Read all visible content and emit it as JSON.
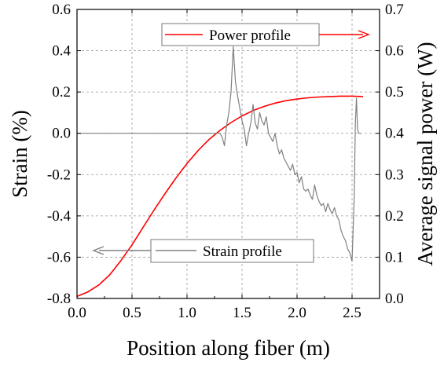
{
  "chart_data": {
    "type": "line",
    "xlabel": "Position along fiber (m)",
    "ylabel_left": "Strain (%)",
    "ylabel_right": "Average signal power (W)",
    "xlim": [
      0.0,
      2.75
    ],
    "ylim_left": [
      -0.8,
      0.6
    ],
    "ylim_right": [
      0.0,
      0.7
    ],
    "x_ticks": [
      "0.0",
      "0.5",
      "1.0",
      "1.5",
      "2.0",
      "2.5"
    ],
    "y_left_ticks": [
      "-0.8",
      "-0.6",
      "-0.4",
      "-0.2",
      "0.0",
      "0.2",
      "0.4",
      "0.6"
    ],
    "y_right_ticks": [
      "0.0",
      "0.1",
      "0.2",
      "0.3",
      "0.4",
      "0.5",
      "0.6",
      "0.7"
    ],
    "grid": true,
    "series": [
      {
        "name": "Power profile",
        "axis": "right",
        "color": "#ff0000",
        "x": [
          0.0,
          0.1,
          0.2,
          0.3,
          0.4,
          0.5,
          0.6,
          0.7,
          0.8,
          0.9,
          1.0,
          1.1,
          1.2,
          1.3,
          1.4,
          1.5,
          1.6,
          1.7,
          1.8,
          1.9,
          2.0,
          2.1,
          2.2,
          2.3,
          2.4,
          2.5,
          2.6
        ],
        "values": [
          0.005,
          0.016,
          0.033,
          0.058,
          0.092,
          0.13,
          0.172,
          0.214,
          0.254,
          0.292,
          0.327,
          0.358,
          0.385,
          0.407,
          0.426,
          0.442,
          0.455,
          0.465,
          0.473,
          0.479,
          0.483,
          0.486,
          0.488,
          0.489,
          0.49,
          0.49,
          0.489
        ]
      },
      {
        "name": "Strain profile",
        "axis": "left",
        "color": "#808080",
        "x": [
          0.0,
          1.3,
          1.32,
          1.34,
          1.36,
          1.38,
          1.4,
          1.42,
          1.44,
          1.46,
          1.48,
          1.5,
          1.52,
          1.54,
          1.56,
          1.58,
          1.6,
          1.62,
          1.64,
          1.66,
          1.68,
          1.7,
          1.72,
          1.74,
          1.76,
          1.78,
          1.8,
          1.82,
          1.84,
          1.86,
          1.88,
          1.9,
          1.92,
          1.94,
          1.96,
          1.98,
          2.0,
          2.02,
          2.04,
          2.06,
          2.08,
          2.1,
          2.12,
          2.14,
          2.16,
          2.18,
          2.2,
          2.22,
          2.24,
          2.26,
          2.28,
          2.3,
          2.32,
          2.34,
          2.36,
          2.38,
          2.4,
          2.42,
          2.44,
          2.46,
          2.48,
          2.5,
          2.52,
          2.53,
          2.54,
          2.55,
          2.56,
          2.58
        ],
        "values": [
          0.0,
          0.0,
          -0.02,
          -0.06,
          0.04,
          0.1,
          0.2,
          0.42,
          0.25,
          0.18,
          0.12,
          0.06,
          0.02,
          -0.06,
          0.0,
          0.05,
          0.14,
          0.05,
          0.02,
          0.1,
          0.06,
          0.04,
          0.08,
          0.0,
          -0.02,
          -0.04,
          0.0,
          -0.06,
          -0.1,
          -0.08,
          -0.12,
          -0.14,
          -0.16,
          -0.18,
          -0.15,
          -0.2,
          -0.19,
          -0.24,
          -0.21,
          -0.27,
          -0.28,
          -0.27,
          -0.3,
          -0.32,
          -0.25,
          -0.3,
          -0.33,
          -0.35,
          -0.34,
          -0.38,
          -0.34,
          -0.37,
          -0.39,
          -0.36,
          -0.4,
          -0.42,
          -0.47,
          -0.5,
          -0.52,
          -0.56,
          -0.58,
          -0.62,
          -0.3,
          0.05,
          0.17,
          0.02,
          0.0,
          0.0
        ]
      }
    ],
    "annotations": [
      {
        "text": "Power profile",
        "arrow": "right"
      },
      {
        "text": "Strain profile",
        "arrow": "left"
      }
    ]
  }
}
